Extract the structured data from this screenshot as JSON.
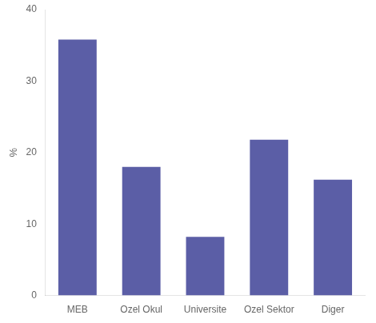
{
  "chart_data": {
    "type": "bar",
    "categories": [
      "MEB",
      "Ozel Okul",
      "Universite",
      "Ozel Sektor",
      "Diger"
    ],
    "values": [
      35.8,
      18.0,
      8.2,
      21.8,
      16.2
    ],
    "color": "#5b5ea6",
    "ylabel": "%",
    "ylim": [
      0,
      40
    ],
    "yticks": [
      0,
      10,
      20,
      30,
      40
    ],
    "grid": false
  }
}
